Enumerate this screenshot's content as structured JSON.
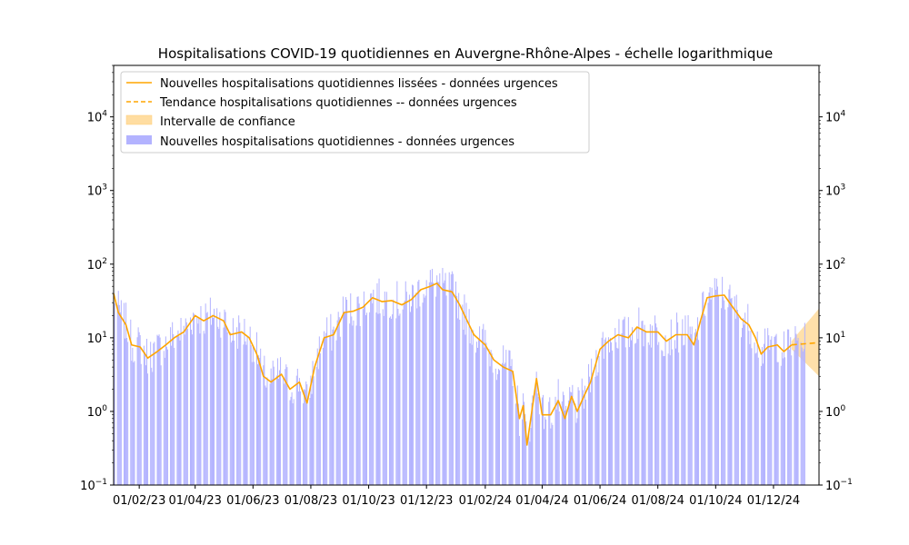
{
  "chart_data": {
    "type": "bar",
    "title": "Hospitalisations COVID-19 quotidiennes en Auvergne-Rhône-Alpes - échelle logarithmique",
    "xlabel": "",
    "ylabel": "",
    "y_scale": "log",
    "ylim": [
      0.1,
      50000
    ],
    "y_ticks": [
      {
        "value": 0.1,
        "base": "10",
        "exp": "−1"
      },
      {
        "value": 1,
        "base": "10",
        "exp": "0"
      },
      {
        "value": 10,
        "base": "10",
        "exp": "1"
      },
      {
        "value": 100,
        "base": "10",
        "exp": "2"
      },
      {
        "value": 1000,
        "base": "10",
        "exp": "3"
      },
      {
        "value": 10000,
        "base": "10",
        "exp": "4"
      }
    ],
    "x_range": [
      "2023-01-05",
      "2025-01-18"
    ],
    "x_ticks": [
      {
        "date": "2023-02-01",
        "label": "01/02/23"
      },
      {
        "date": "2023-04-01",
        "label": "01/04/23"
      },
      {
        "date": "2023-06-01",
        "label": "01/06/23"
      },
      {
        "date": "2023-08-01",
        "label": "01/08/23"
      },
      {
        "date": "2023-10-01",
        "label": "01/10/23"
      },
      {
        "date": "2023-12-01",
        "label": "01/12/23"
      },
      {
        "date": "2024-02-01",
        "label": "01/02/24"
      },
      {
        "date": "2024-04-01",
        "label": "01/04/24"
      },
      {
        "date": "2024-06-01",
        "label": "01/06/24"
      },
      {
        "date": "2024-08-01",
        "label": "01/08/24"
      },
      {
        "date": "2024-10-01",
        "label": "01/10/24"
      },
      {
        "date": "2024-12-01",
        "label": "01/12/24"
      }
    ],
    "legend": {
      "placement": "upper left",
      "entries": [
        {
          "label": "Nouvelles hospitalisations quotidiennes lissées - données urgences",
          "kind": "line"
        },
        {
          "label": "Tendance hospitalisations quotidiennes -- données urgences",
          "kind": "dashed"
        },
        {
          "label": "Intervalle de confiance",
          "kind": "patch-light"
        },
        {
          "label": "Nouvelles hospitalisations quotidiennes - données urgences",
          "kind": "patch"
        }
      ]
    },
    "colors": {
      "bars": "#b3b3ff",
      "smoothed": "#ffa500",
      "trend": "#ffa500",
      "ci": "#ffdda1"
    },
    "series": [
      {
        "name": "Nouvelles hospitalisations quotidiennes lissées - données urgences",
        "kind": "line",
        "points": [
          {
            "date": "2023-01-05",
            "value": 40
          },
          {
            "date": "2023-01-10",
            "value": 22
          },
          {
            "date": "2023-01-18",
            "value": 15
          },
          {
            "date": "2023-01-24",
            "value": 8
          },
          {
            "date": "2023-02-02",
            "value": 7.5
          },
          {
            "date": "2023-02-10",
            "value": 5.3
          },
          {
            "date": "2023-02-20",
            "value": 6.5
          },
          {
            "date": "2023-03-01",
            "value": 8
          },
          {
            "date": "2023-03-10",
            "value": 10
          },
          {
            "date": "2023-03-20",
            "value": 12
          },
          {
            "date": "2023-04-01",
            "value": 20
          },
          {
            "date": "2023-04-10",
            "value": 17
          },
          {
            "date": "2023-04-20",
            "value": 20
          },
          {
            "date": "2023-05-01",
            "value": 17
          },
          {
            "date": "2023-05-08",
            "value": 11
          },
          {
            "date": "2023-05-20",
            "value": 12
          },
          {
            "date": "2023-05-28",
            "value": 10
          },
          {
            "date": "2023-06-05",
            "value": 6
          },
          {
            "date": "2023-06-12",
            "value": 3
          },
          {
            "date": "2023-06-20",
            "value": 2.5
          },
          {
            "date": "2023-07-01",
            "value": 3.2
          },
          {
            "date": "2023-07-10",
            "value": 2
          },
          {
            "date": "2023-07-20",
            "value": 2.5
          },
          {
            "date": "2023-07-28",
            "value": 1.3
          },
          {
            "date": "2023-08-05",
            "value": 4
          },
          {
            "date": "2023-08-15",
            "value": 10
          },
          {
            "date": "2023-08-25",
            "value": 11
          },
          {
            "date": "2023-09-05",
            "value": 22
          },
          {
            "date": "2023-09-15",
            "value": 23
          },
          {
            "date": "2023-09-25",
            "value": 26
          },
          {
            "date": "2023-10-05",
            "value": 35
          },
          {
            "date": "2023-10-15",
            "value": 31
          },
          {
            "date": "2023-10-25",
            "value": 32
          },
          {
            "date": "2023-11-05",
            "value": 28
          },
          {
            "date": "2023-11-15",
            "value": 33
          },
          {
            "date": "2023-11-25",
            "value": 45
          },
          {
            "date": "2023-12-05",
            "value": 50
          },
          {
            "date": "2023-12-12",
            "value": 55
          },
          {
            "date": "2023-12-18",
            "value": 45
          },
          {
            "date": "2023-12-28",
            "value": 42
          },
          {
            "date": "2024-01-05",
            "value": 28
          },
          {
            "date": "2024-01-12",
            "value": 18
          },
          {
            "date": "2024-01-20",
            "value": 11
          },
          {
            "date": "2024-02-01",
            "value": 8
          },
          {
            "date": "2024-02-10",
            "value": 5
          },
          {
            "date": "2024-02-20",
            "value": 4
          },
          {
            "date": "2024-03-01",
            "value": 3.5
          },
          {
            "date": "2024-03-08",
            "value": 0.8
          },
          {
            "date": "2024-03-12",
            "value": 1.2
          },
          {
            "date": "2024-03-16",
            "value": 0.35
          },
          {
            "date": "2024-03-20",
            "value": 0.8
          },
          {
            "date": "2024-03-26",
            "value": 2.8
          },
          {
            "date": "2024-04-01",
            "value": 0.9
          },
          {
            "date": "2024-04-10",
            "value": 0.9
          },
          {
            "date": "2024-04-18",
            "value": 1.4
          },
          {
            "date": "2024-04-25",
            "value": 0.8
          },
          {
            "date": "2024-05-02",
            "value": 1.6
          },
          {
            "date": "2024-05-08",
            "value": 1
          },
          {
            "date": "2024-05-15",
            "value": 1.6
          },
          {
            "date": "2024-05-22",
            "value": 2.5
          },
          {
            "date": "2024-06-01",
            "value": 7
          },
          {
            "date": "2024-06-10",
            "value": 9
          },
          {
            "date": "2024-06-20",
            "value": 11
          },
          {
            "date": "2024-07-01",
            "value": 10
          },
          {
            "date": "2024-07-10",
            "value": 14
          },
          {
            "date": "2024-07-20",
            "value": 12
          },
          {
            "date": "2024-08-01",
            "value": 12
          },
          {
            "date": "2024-08-10",
            "value": 9
          },
          {
            "date": "2024-08-20",
            "value": 11
          },
          {
            "date": "2024-09-01",
            "value": 11
          },
          {
            "date": "2024-09-08",
            "value": 8
          },
          {
            "date": "2024-09-15",
            "value": 17
          },
          {
            "date": "2024-09-22",
            "value": 35
          },
          {
            "date": "2024-10-01",
            "value": 37
          },
          {
            "date": "2024-10-10",
            "value": 38
          },
          {
            "date": "2024-10-20",
            "value": 25
          },
          {
            "date": "2024-10-28",
            "value": 18
          },
          {
            "date": "2024-11-05",
            "value": 15
          },
          {
            "date": "2024-11-12",
            "value": 10
          },
          {
            "date": "2024-11-18",
            "value": 6
          },
          {
            "date": "2024-11-25",
            "value": 7.5
          },
          {
            "date": "2024-12-05",
            "value": 8
          },
          {
            "date": "2024-12-12",
            "value": 6.5
          },
          {
            "date": "2024-12-20",
            "value": 8
          }
        ]
      },
      {
        "name": "Tendance hospitalisations quotidiennes -- données urgences",
        "kind": "dashed",
        "points": [
          {
            "date": "2024-12-20",
            "value": 8
          },
          {
            "date": "2025-01-18",
            "value": 8.6
          }
        ]
      },
      {
        "name": "Intervalle de confiance",
        "kind": "band",
        "points": [
          {
            "date": "2024-12-20",
            "low": 7,
            "high": 9
          },
          {
            "date": "2025-01-18",
            "low": 3,
            "high": 25
          }
        ]
      }
    ]
  }
}
